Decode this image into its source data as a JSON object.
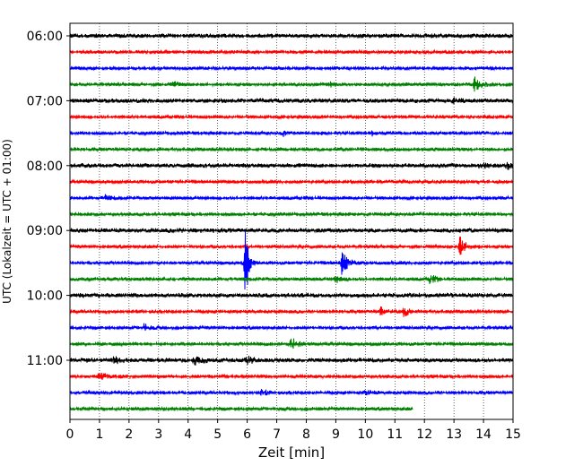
{
  "chart_data": {
    "type": "line",
    "title": "",
    "xlabel": "Zeit  [min]",
    "ylabel": "UTC (Lokalzeit = UTC + 01:00)",
    "xlim": [
      0,
      15
    ],
    "x_ticks": [
      0,
      1,
      2,
      3,
      4,
      5,
      6,
      7,
      8,
      9,
      10,
      11,
      12,
      13,
      14,
      15
    ],
    "y_tick_labels": [
      "06:00",
      "07:00",
      "08:00",
      "09:00",
      "10:00",
      "11:00"
    ],
    "trace_start": "06:00",
    "trace_interval_min": 15,
    "trace_colors": [
      "#000000",
      "#ff0000",
      "#0000ff",
      "#008000"
    ],
    "grid": "vertical-dotted",
    "last_trace_end_min": 11.6,
    "events": [
      {
        "trace": "06:45",
        "x": 3.5,
        "amplitude": 3
      },
      {
        "trace": "06:45",
        "x": 8.8,
        "amplitude": 3
      },
      {
        "trace": "06:45",
        "x": 13.7,
        "amplitude": 9
      },
      {
        "trace": "07:00",
        "x": 13.0,
        "amplitude": 3
      },
      {
        "trace": "07:30",
        "x": 7.2,
        "amplitude": 3
      },
      {
        "trace": "07:30",
        "x": 10.2,
        "amplitude": 3
      },
      {
        "trace": "08:00",
        "x": 13.9,
        "amplitude": 3
      },
      {
        "trace": "08:00",
        "x": 14.8,
        "amplitude": 4
      },
      {
        "trace": "08:30",
        "x": 1.2,
        "amplitude": 3
      },
      {
        "trace": "09:15",
        "x": 13.2,
        "amplitude": 12
      },
      {
        "trace": "09:30",
        "x": 5.95,
        "amplitude": 50
      },
      {
        "trace": "09:30",
        "x": 9.2,
        "amplitude": 14
      },
      {
        "trace": "09:45",
        "x": 9.0,
        "amplitude": 4
      },
      {
        "trace": "09:45",
        "x": 12.2,
        "amplitude": 5
      },
      {
        "trace": "10:15",
        "x": 10.5,
        "amplitude": 5
      },
      {
        "trace": "10:15",
        "x": 11.3,
        "amplitude": 5
      },
      {
        "trace": "10:30",
        "x": 2.5,
        "amplitude": 4
      },
      {
        "trace": "10:45",
        "x": 7.5,
        "amplitude": 7
      },
      {
        "trace": "11:00",
        "x": 1.5,
        "amplitude": 4
      },
      {
        "trace": "11:00",
        "x": 4.2,
        "amplitude": 5
      },
      {
        "trace": "11:00",
        "x": 6.0,
        "amplitude": 4
      },
      {
        "trace": "11:15",
        "x": 1.0,
        "amplitude": 5
      },
      {
        "trace": "11:30",
        "x": 6.5,
        "amplitude": 3
      },
      {
        "trace": "11:30",
        "x": 10.0,
        "amplitude": 3
      }
    ]
  }
}
